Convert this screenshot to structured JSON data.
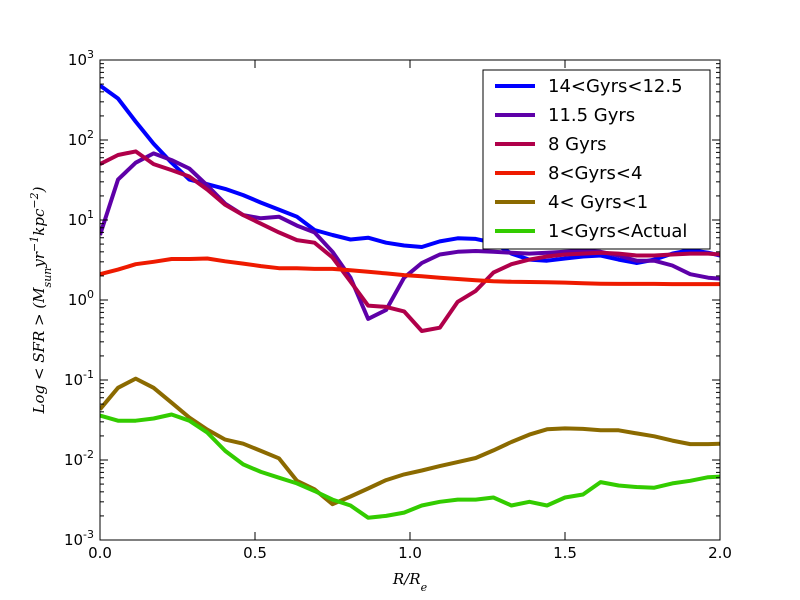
{
  "chart_data": {
    "type": "line",
    "title": "",
    "xlabel": "R/R_e",
    "ylabel": "Log < SFR > (M_sun yr^-1 kpc^-2)",
    "xlim": [
      0,
      2.0
    ],
    "ylim": [
      0.001,
      1000
    ],
    "yscale": "log",
    "grid": false,
    "legend_position": "top-right",
    "x_ticks": [
      "0.0",
      "0.5",
      "1.0",
      "1.5",
      "2.0"
    ],
    "y_ticks": [
      {
        "base": "10",
        "exp": "-3",
        "value": 0.001
      },
      {
        "base": "10",
        "exp": "-2",
        "value": 0.01
      },
      {
        "base": "10",
        "exp": "-1",
        "value": 0.1
      },
      {
        "base": "10",
        "exp": "0",
        "value": 1
      },
      {
        "base": "10",
        "exp": "1",
        "value": 10
      },
      {
        "base": "10",
        "exp": "2",
        "value": 100
      },
      {
        "base": "10",
        "exp": "3",
        "value": 1000
      }
    ],
    "series": [
      {
        "name": "14<Gyrs<12.5",
        "color": "#0000ff",
        "points": [
          [
            0.0,
            480
          ],
          [
            0.058,
            330
          ],
          [
            0.115,
            170
          ],
          [
            0.173,
            90
          ],
          [
            0.231,
            52
          ],
          [
            0.288,
            32
          ],
          [
            0.346,
            28
          ],
          [
            0.404,
            24.5
          ],
          [
            0.462,
            20.5
          ],
          [
            0.519,
            16.5
          ],
          [
            0.577,
            13.5
          ],
          [
            0.635,
            11
          ],
          [
            0.692,
            7.5
          ],
          [
            0.75,
            6.5
          ],
          [
            0.808,
            5.7
          ],
          [
            0.865,
            6
          ],
          [
            0.923,
            5.2
          ],
          [
            0.981,
            4.8
          ],
          [
            1.038,
            4.6
          ],
          [
            1.096,
            5.4
          ],
          [
            1.154,
            5.9
          ],
          [
            1.212,
            5.8
          ],
          [
            1.269,
            5.2
          ],
          [
            1.327,
            3.8
          ],
          [
            1.385,
            3.2
          ],
          [
            1.442,
            3.1
          ],
          [
            1.5,
            3.3
          ],
          [
            1.558,
            3.5
          ],
          [
            1.615,
            3.6
          ],
          [
            1.673,
            3.2
          ],
          [
            1.731,
            2.9
          ],
          [
            1.788,
            3.2
          ],
          [
            1.846,
            3.8
          ],
          [
            1.904,
            4.2
          ],
          [
            1.962,
            3.9
          ],
          [
            2.0,
            3.6
          ]
        ]
      },
      {
        "name": "11.5 Gyrs",
        "color": "#5e00a8",
        "points": [
          [
            0.0,
            6.5
          ],
          [
            0.058,
            32
          ],
          [
            0.115,
            52
          ],
          [
            0.173,
            68
          ],
          [
            0.231,
            56
          ],
          [
            0.288,
            44
          ],
          [
            0.346,
            27
          ],
          [
            0.404,
            16
          ],
          [
            0.462,
            11.5
          ],
          [
            0.519,
            10.5
          ],
          [
            0.577,
            11
          ],
          [
            0.635,
            8.5
          ],
          [
            0.692,
            7
          ],
          [
            0.75,
            4
          ],
          [
            0.808,
            1.9
          ],
          [
            0.865,
            0.58
          ],
          [
            0.923,
            0.75
          ],
          [
            0.981,
            1.9
          ],
          [
            1.038,
            2.9
          ],
          [
            1.096,
            3.7
          ],
          [
            1.154,
            4
          ],
          [
            1.212,
            4.1
          ],
          [
            1.269,
            4
          ],
          [
            1.327,
            3.9
          ],
          [
            1.385,
            3.8
          ],
          [
            1.442,
            3.9
          ],
          [
            1.5,
            4
          ],
          [
            1.558,
            4.1
          ],
          [
            1.615,
            4
          ],
          [
            1.673,
            3.6
          ],
          [
            1.731,
            3.1
          ],
          [
            1.788,
            3.1
          ],
          [
            1.846,
            2.7
          ],
          [
            1.904,
            2.1
          ],
          [
            1.962,
            1.9
          ],
          [
            2.0,
            1.85
          ]
        ]
      },
      {
        "name": "8 Gyrs",
        "color": "#b0004a",
        "points": [
          [
            0.0,
            50
          ],
          [
            0.058,
            65
          ],
          [
            0.115,
            72
          ],
          [
            0.173,
            50
          ],
          [
            0.231,
            42
          ],
          [
            0.288,
            35
          ],
          [
            0.346,
            24
          ],
          [
            0.404,
            15.5
          ],
          [
            0.462,
            11.5
          ],
          [
            0.519,
            9
          ],
          [
            0.577,
            7
          ],
          [
            0.635,
            5.6
          ],
          [
            0.692,
            5.2
          ],
          [
            0.75,
            3.4
          ],
          [
            0.808,
            1.7
          ],
          [
            0.865,
            0.85
          ],
          [
            0.923,
            0.82
          ],
          [
            0.981,
            0.72
          ],
          [
            1.038,
            0.41
          ],
          [
            1.096,
            0.45
          ],
          [
            1.154,
            0.95
          ],
          [
            1.212,
            1.3
          ],
          [
            1.269,
            2.2
          ],
          [
            1.327,
            2.8
          ],
          [
            1.385,
            3.2
          ],
          [
            1.442,
            3.5
          ],
          [
            1.5,
            3.7
          ],
          [
            1.558,
            3.8
          ],
          [
            1.615,
            3.9
          ],
          [
            1.673,
            3.8
          ],
          [
            1.731,
            3.6
          ],
          [
            1.788,
            3.6
          ],
          [
            1.846,
            3.7
          ],
          [
            1.904,
            3.8
          ],
          [
            1.962,
            3.8
          ],
          [
            2.0,
            3.7
          ]
        ]
      },
      {
        "name": "8<Gyrs<4",
        "color": "#ee1a00",
        "points": [
          [
            0.0,
            2.1
          ],
          [
            0.058,
            2.4
          ],
          [
            0.115,
            2.8
          ],
          [
            0.173,
            3.0
          ],
          [
            0.231,
            3.25
          ],
          [
            0.288,
            3.25
          ],
          [
            0.346,
            3.3
          ],
          [
            0.404,
            3.05
          ],
          [
            0.462,
            2.85
          ],
          [
            0.519,
            2.65
          ],
          [
            0.577,
            2.5
          ],
          [
            0.635,
            2.5
          ],
          [
            0.692,
            2.45
          ],
          [
            0.75,
            2.45
          ],
          [
            0.808,
            2.35
          ],
          [
            0.865,
            2.25
          ],
          [
            0.923,
            2.15
          ],
          [
            0.981,
            2.05
          ],
          [
            1.038,
            1.98
          ],
          [
            1.096,
            1.9
          ],
          [
            1.154,
            1.83
          ],
          [
            1.212,
            1.77
          ],
          [
            1.269,
            1.72
          ],
          [
            1.327,
            1.69
          ],
          [
            1.385,
            1.68
          ],
          [
            1.442,
            1.67
          ],
          [
            1.5,
            1.65
          ],
          [
            1.558,
            1.62
          ],
          [
            1.615,
            1.6
          ],
          [
            1.673,
            1.59
          ],
          [
            1.731,
            1.59
          ],
          [
            1.788,
            1.59
          ],
          [
            1.846,
            1.58
          ],
          [
            1.904,
            1.58
          ],
          [
            1.962,
            1.58
          ],
          [
            2.0,
            1.58
          ]
        ]
      },
      {
        "name": "4< Gyrs<1",
        "color": "#8b6a00",
        "points": [
          [
            0.0,
            0.043
          ],
          [
            0.058,
            0.08
          ],
          [
            0.115,
            0.104
          ],
          [
            0.173,
            0.08
          ],
          [
            0.231,
            0.052
          ],
          [
            0.288,
            0.034
          ],
          [
            0.346,
            0.024
          ],
          [
            0.404,
            0.018
          ],
          [
            0.462,
            0.016
          ],
          [
            0.519,
            0.013
          ],
          [
            0.577,
            0.0105
          ],
          [
            0.635,
            0.0055
          ],
          [
            0.692,
            0.0043
          ],
          [
            0.75,
            0.0028
          ],
          [
            0.808,
            0.0035
          ],
          [
            0.865,
            0.0044
          ],
          [
            0.923,
            0.0056
          ],
          [
            0.981,
            0.0066
          ],
          [
            1.038,
            0.0074
          ],
          [
            1.096,
            0.0084
          ],
          [
            1.154,
            0.0094
          ],
          [
            1.212,
            0.0106
          ],
          [
            1.269,
            0.0132
          ],
          [
            1.327,
            0.0168
          ],
          [
            1.385,
            0.0208
          ],
          [
            1.442,
            0.0242
          ],
          [
            1.5,
            0.0248
          ],
          [
            1.558,
            0.0245
          ],
          [
            1.615,
            0.0235
          ],
          [
            1.673,
            0.0235
          ],
          [
            1.731,
            0.0215
          ],
          [
            1.788,
            0.0198
          ],
          [
            1.846,
            0.0175
          ],
          [
            1.904,
            0.0158
          ],
          [
            1.962,
            0.0158
          ],
          [
            2.0,
            0.016
          ]
        ]
      },
      {
        "name": "1<Gyrs<Actual",
        "color": "#33cc00",
        "points": [
          [
            0.0,
            0.036
          ],
          [
            0.058,
            0.031
          ],
          [
            0.115,
            0.031
          ],
          [
            0.173,
            0.033
          ],
          [
            0.231,
            0.037
          ],
          [
            0.288,
            0.031
          ],
          [
            0.346,
            0.022
          ],
          [
            0.404,
            0.013
          ],
          [
            0.462,
            0.0088
          ],
          [
            0.519,
            0.0071
          ],
          [
            0.577,
            0.006
          ],
          [
            0.635,
            0.0051
          ],
          [
            0.692,
            0.0041
          ],
          [
            0.75,
            0.0032
          ],
          [
            0.808,
            0.0027
          ],
          [
            0.865,
            0.0019
          ],
          [
            0.923,
            0.002
          ],
          [
            0.981,
            0.0022
          ],
          [
            1.038,
            0.0027
          ],
          [
            1.096,
            0.003
          ],
          [
            1.154,
            0.0032
          ],
          [
            1.212,
            0.0032
          ],
          [
            1.269,
            0.0034
          ],
          [
            1.327,
            0.0027
          ],
          [
            1.385,
            0.003
          ],
          [
            1.442,
            0.0027
          ],
          [
            1.5,
            0.0034
          ],
          [
            1.558,
            0.0037
          ],
          [
            1.615,
            0.0053
          ],
          [
            1.673,
            0.0048
          ],
          [
            1.731,
            0.0046
          ],
          [
            1.788,
            0.0045
          ],
          [
            1.846,
            0.0051
          ],
          [
            1.904,
            0.0055
          ],
          [
            1.962,
            0.0061
          ],
          [
            2.0,
            0.0062
          ]
        ]
      }
    ]
  }
}
